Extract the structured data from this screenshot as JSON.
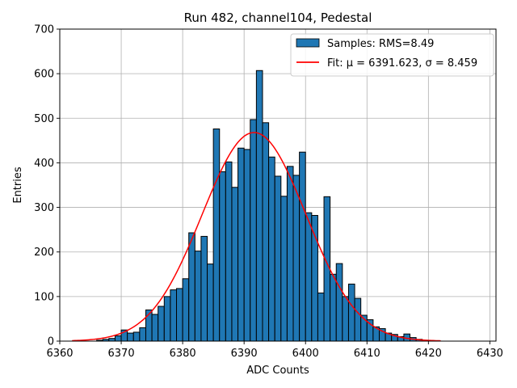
{
  "chart_data": {
    "type": "bar",
    "title": "Run 482, channel104, Pedestal",
    "xlabel": "ADC Counts",
    "ylabel": "Entries",
    "xlim": [
      6360,
      6431
    ],
    "ylim": [
      0,
      700
    ],
    "xticks": [
      6360,
      6370,
      6380,
      6390,
      6400,
      6410,
      6420,
      6430
    ],
    "yticks": [
      0,
      100,
      200,
      300,
      400,
      500,
      600,
      700
    ],
    "grid": true,
    "legend_position": "top-right",
    "bins": {
      "start": 6366,
      "width": 1,
      "values": [
        2,
        4,
        6,
        12,
        25,
        18,
        20,
        30,
        70,
        60,
        78,
        100,
        115,
        118,
        140,
        243,
        202,
        235,
        173,
        476,
        380,
        402,
        345,
        433,
        430,
        497,
        607,
        490,
        413,
        370,
        325,
        392,
        372,
        424,
        288,
        282,
        108,
        324,
        150,
        174,
        100,
        128,
        96,
        58,
        48,
        32,
        28,
        18,
        15,
        10,
        16,
        8,
        4,
        2
      ]
    },
    "series": [
      {
        "name": "Samples: RMS=8.49",
        "kind": "histogram",
        "color": "#1f77b4"
      },
      {
        "name": "Fit: μ = 6391.623, σ = 8.459",
        "kind": "gaussian",
        "color": "#ff0000",
        "mu": 6391.623,
        "sigma": 8.459,
        "amplitude": 468,
        "range": [
          6362,
          6422
        ]
      }
    ]
  }
}
